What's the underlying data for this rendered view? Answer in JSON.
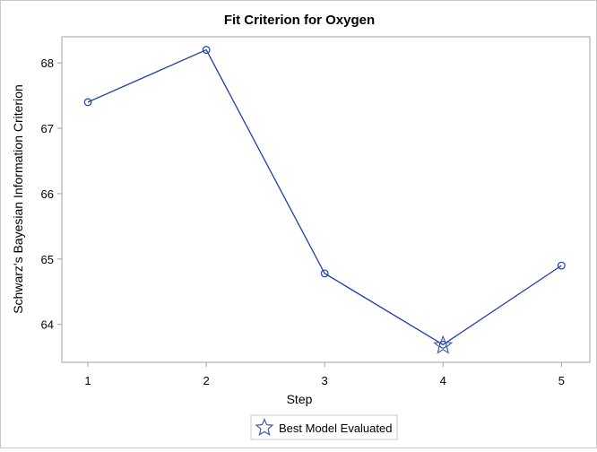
{
  "chart_data": {
    "type": "line",
    "title": "Fit Criterion for Oxygen",
    "xlabel": "Step",
    "ylabel": "Schwarz's Bayesian Information Criterion",
    "x": [
      1,
      2,
      3,
      4,
      5
    ],
    "values": [
      67.4,
      68.2,
      64.78,
      63.69,
      64.9
    ],
    "xticks": [
      "1",
      "2",
      "3",
      "4",
      "5"
    ],
    "yticks": [
      "64",
      "65",
      "66",
      "67",
      "68"
    ],
    "xlim": [
      0.78,
      5.24
    ],
    "ylim": [
      63.42,
      68.4
    ],
    "grid": false,
    "best_step": 4,
    "legend": {
      "placement": "bottom",
      "label": "Best Model Evaluated",
      "marker": "star-icon"
    },
    "colors": {
      "line": "#1f3fa8",
      "star": "#4a5aa8",
      "axis": "#a0a0a0"
    }
  }
}
